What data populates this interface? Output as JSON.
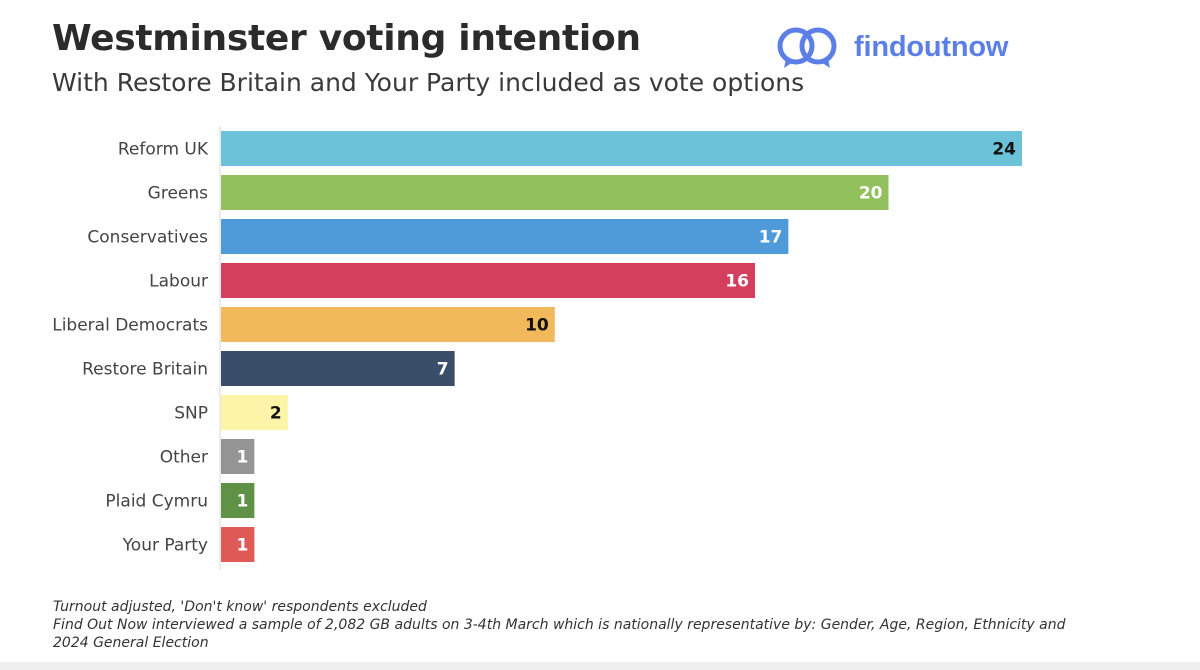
{
  "header": {
    "title": "Westminster voting intention",
    "subtitle": "With Restore Britain and Your Party included as vote options",
    "brand": "findoutnow",
    "brand_color": "#5b7fe6"
  },
  "chart_data": {
    "type": "bar",
    "orientation": "horizontal",
    "title": "Westminster voting intention",
    "subtitle": "With Restore Britain and Your Party included as vote options",
    "xlabel": "",
    "ylabel": "",
    "xlim": [
      0,
      24
    ],
    "grid": false,
    "legend": "none",
    "categories": [
      "Reform UK",
      "Greens",
      "Conservatives",
      "Labour",
      "Liberal Democrats",
      "Restore Britain",
      "SNP",
      "Other",
      "Plaid Cymru",
      "Your Party"
    ],
    "values": [
      24,
      20,
      17,
      16,
      10,
      7,
      2,
      1,
      1,
      1
    ],
    "colors": [
      "#6cc2d8",
      "#92c05c",
      "#4f9ad9",
      "#d53f5e",
      "#f2b95b",
      "#3b4e69",
      "#fcf5a7",
      "#949494",
      "#5f9246",
      "#e05a58"
    ],
    "label_colors": [
      "#111111",
      "#ffffff",
      "#ffffff",
      "#ffffff",
      "#111111",
      "#ffffff",
      "#111111",
      "#ffffff",
      "#ffffff",
      "#ffffff"
    ]
  },
  "footnote": {
    "line1": "Turnout adjusted, 'Don't know' respondents excluded",
    "line2": "Find Out Now interviewed a sample of 2,082 GB adults on 3-4th March which is nationally representative by: Gender, Age, Region, Ethnicity and",
    "line3": "2024 General Election"
  }
}
